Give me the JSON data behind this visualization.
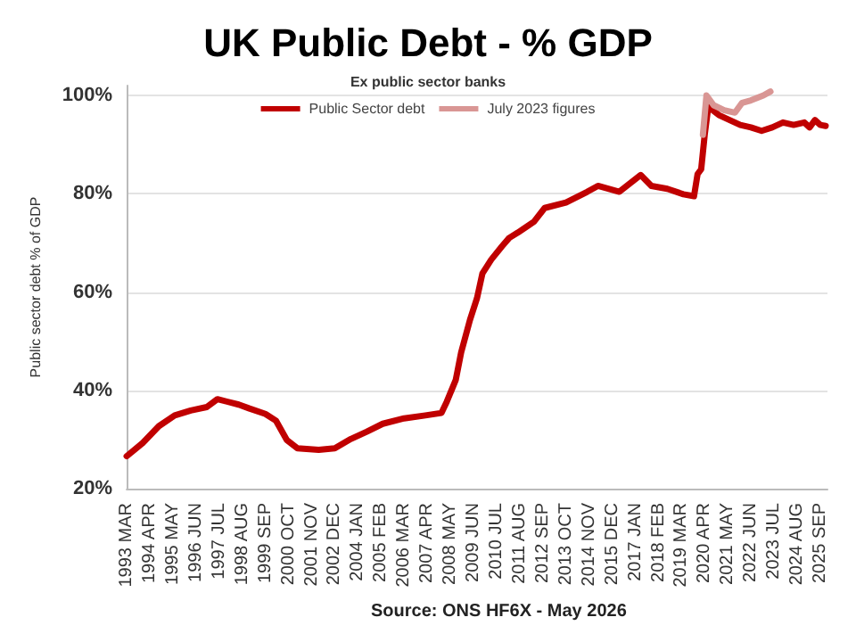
{
  "chart_data": {
    "type": "line",
    "title": "UK Public Debt - % GDP",
    "subtitle": "Ex public sector banks",
    "ylabel": "Public sector debt % of GDP",
    "annotations": [
      "Source: ONS HF6X - May 2026"
    ],
    "series": [
      {
        "name": "Public Sector debt",
        "color": "#c00000",
        "x": [
          "1993-03",
          "1993-12",
          "1994-09",
          "1995-06",
          "1996-03",
          "1996-12",
          "1997-06",
          "1998-06",
          "1998-12",
          "1999-09",
          "2000-03",
          "2000-09",
          "2001-03",
          "2002-03",
          "2002-12",
          "2003-09",
          "2004-06",
          "2005-03",
          "2006-03",
          "2007-03",
          "2007-12",
          "2008-03",
          "2008-08",
          "2008-11",
          "2009-04",
          "2009-08",
          "2009-11",
          "2010-04",
          "2010-10",
          "2011-02",
          "2011-07",
          "2012-04",
          "2012-10",
          "2013-10",
          "2014-10",
          "2015-04",
          "2016-04",
          "2017-04",
          "2017-10",
          "2018-07",
          "2019-04",
          "2019-10",
          "2019-12",
          "2020-02",
          "2020-04",
          "2020-06",
          "2020-12",
          "2021-06",
          "2021-12",
          "2022-06",
          "2022-12",
          "2023-06",
          "2023-12",
          "2024-06",
          "2024-12",
          "2025-03",
          "2025-06",
          "2025-09",
          "2025-12"
        ],
        "values": [
          26.6,
          29.3,
          32.7,
          34.9,
          35.9,
          36.6,
          38.2,
          37.1,
          36.3,
          35.2,
          33.8,
          29.9,
          28.2,
          27.9,
          28.2,
          30.1,
          31.6,
          33.2,
          34.3,
          34.9,
          35.4,
          37.7,
          42.1,
          47.7,
          54.3,
          58.8,
          63.8,
          66.6,
          69.3,
          71,
          72.1,
          74.3,
          77.1,
          78.2,
          80.4,
          81.6,
          80.4,
          83.8,
          81.6,
          81,
          79.9,
          79.5,
          84,
          85,
          92,
          97.7,
          96,
          95,
          94,
          93.5,
          92.8,
          93.5,
          94.5,
          94,
          94.5,
          93.5,
          95,
          94,
          93.8
        ]
      },
      {
        "name": "July 2023 figures",
        "color": "#d99694",
        "x": [
          "2020-03",
          "2020-05",
          "2020-09",
          "2021-03",
          "2021-09",
          "2022-01",
          "2022-06",
          "2023-01",
          "2023-05"
        ],
        "values": [
          92,
          100,
          98,
          97,
          96.5,
          98.5,
          99,
          100,
          100.8
        ]
      }
    ],
    "xlim": [
      "1993-03",
      "2026-01"
    ],
    "xticks": [
      {
        "value": "1993-03",
        "label": "1993 MAR"
      },
      {
        "value": "1994-04",
        "label": "1994 APR"
      },
      {
        "value": "1995-05",
        "label": "1995 MAY"
      },
      {
        "value": "1996-06",
        "label": "1996 JUN"
      },
      {
        "value": "1997-07",
        "label": "1997 JUL"
      },
      {
        "value": "1998-08",
        "label": "1998 AUG"
      },
      {
        "value": "1999-09",
        "label": "1999 SEP"
      },
      {
        "value": "2000-10",
        "label": "2000 OCT"
      },
      {
        "value": "2001-11",
        "label": "2001 NOV"
      },
      {
        "value": "2002-12",
        "label": "2002 DEC"
      },
      {
        "value": "2004-01",
        "label": "2004 JAN"
      },
      {
        "value": "2005-02",
        "label": "2005 FEB"
      },
      {
        "value": "2006-03",
        "label": "2006 MAR"
      },
      {
        "value": "2007-04",
        "label": "2007 APR"
      },
      {
        "value": "2008-05",
        "label": "2008 MAY"
      },
      {
        "value": "2009-06",
        "label": "2009 JUN"
      },
      {
        "value": "2010-07",
        "label": "2010 JUL"
      },
      {
        "value": "2011-08",
        "label": "2011 AUG"
      },
      {
        "value": "2012-09",
        "label": "2012 SEP"
      },
      {
        "value": "2013-10",
        "label": "2013 OCT"
      },
      {
        "value": "2014-11",
        "label": "2014 NOV"
      },
      {
        "value": "2015-12",
        "label": "2015 DEC"
      },
      {
        "value": "2017-01",
        "label": "2017 JAN"
      },
      {
        "value": "2018-02",
        "label": "2018 FEB"
      },
      {
        "value": "2019-03",
        "label": "2019 MAR"
      },
      {
        "value": "2020-04",
        "label": "2020 APR"
      },
      {
        "value": "2021-05",
        "label": "2021 MAY"
      },
      {
        "value": "2022-06",
        "label": "2022 JUN"
      },
      {
        "value": "2023-07",
        "label": "2023 JUL"
      },
      {
        "value": "2024-08",
        "label": "2024 AUG"
      },
      {
        "value": "2025-09",
        "label": "2025 SEP"
      }
    ],
    "ylim": [
      20,
      102
    ],
    "yticks": [
      {
        "value": 20,
        "label": "20%"
      },
      {
        "value": 40,
        "label": "40%"
      },
      {
        "value": 60,
        "label": "60%"
      },
      {
        "value": 80,
        "label": "80%"
      },
      {
        "value": 100,
        "label": "100%"
      }
    ],
    "grid": "y",
    "legend": "top",
    "marker": "none",
    "line_style": "solid"
  }
}
